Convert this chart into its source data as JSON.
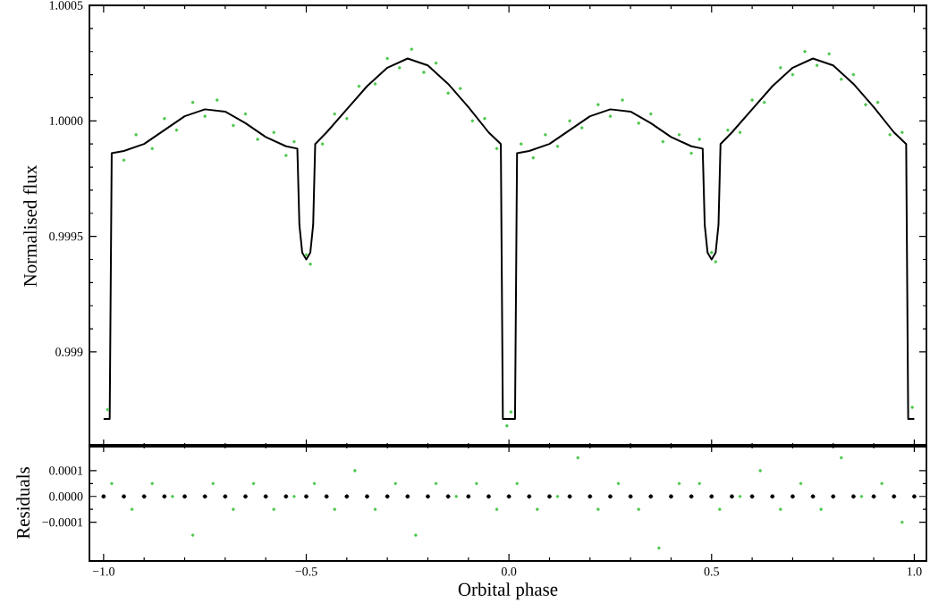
{
  "chart_data": [
    {
      "type": "scatter",
      "ylabel": "Normalised flux",
      "xlim": [
        -1.035,
        1.03
      ],
      "ylim": [
        0.99859,
        1.0005
      ],
      "tick_labels": "y",
      "xticks": [
        -1.0,
        -0.5,
        0.0,
        0.5,
        1.0
      ],
      "yticks": [
        0.999,
        0.9995,
        {
          "value": 1.0,
          "label": "1.0000"
        },
        1.0005
      ],
      "series": [
        {
          "color": "#4cc84c",
          "marker": "circle",
          "x": [
            -0.99,
            -0.95,
            -0.92,
            -0.88,
            -0.85,
            -0.82,
            -0.78,
            -0.75,
            -0.72,
            -0.68,
            -0.65,
            -0.62,
            -0.58,
            -0.55,
            -0.53,
            -0.5,
            -0.49,
            -0.46,
            -0.43,
            -0.4,
            -0.37,
            -0.33,
            -0.3,
            -0.27,
            -0.24,
            -0.21,
            -0.18,
            -0.15,
            -0.12,
            -0.09,
            -0.06,
            -0.03,
            -0.005,
            0.005,
            0.03,
            0.06,
            0.09,
            0.12,
            0.15,
            0.18,
            0.22,
            0.25,
            0.28,
            0.32,
            0.35,
            0.38,
            0.42,
            0.45,
            0.47,
            0.5,
            0.51,
            0.54,
            0.57,
            0.6,
            0.63,
            0.67,
            0.7,
            0.73,
            0.76,
            0.79,
            0.82,
            0.85,
            0.88,
            0.91,
            0.94,
            0.97,
            0.995
          ],
          "values": [
            0.99875,
            0.99983,
            0.99994,
            0.99988,
            1.00001,
            0.99996,
            1.00008,
            1.00002,
            1.00009,
            0.99998,
            1.00003,
            0.99992,
            0.99995,
            0.99985,
            0.99991,
            0.99942,
            0.99938,
            0.9999,
            1.00003,
            1.00001,
            1.00015,
            1.00016,
            1.00027,
            1.00023,
            1.00031,
            1.00021,
            1.00025,
            1.00012,
            1.00014,
            1.0,
            1.00001,
            0.99988,
            0.99868,
            0.99874,
            0.9999,
            0.99984,
            0.99994,
            0.99989,
            1.0,
            0.99997,
            1.00007,
            1.00002,
            1.00009,
            0.99999,
            1.00003,
            0.99991,
            0.99994,
            0.99986,
            0.99992,
            0.99943,
            0.99939,
            0.99996,
            0.99995,
            1.00009,
            1.00008,
            1.00023,
            1.0002,
            1.0003,
            1.00024,
            1.00029,
            1.00018,
            1.0002,
            1.00007,
            1.00008,
            0.99994,
            0.99995,
            0.99876
          ]
        },
        {
          "type": "line",
          "color": "#000000",
          "x": [
            -1.0,
            -0.985,
            -0.98,
            -0.95,
            -0.9,
            -0.85,
            -0.8,
            -0.75,
            -0.7,
            -0.65,
            -0.6,
            -0.55,
            -0.522,
            -0.517,
            -0.51,
            -0.5,
            -0.49,
            -0.483,
            -0.478,
            -0.45,
            -0.4,
            -0.35,
            -0.3,
            -0.25,
            -0.2,
            -0.15,
            -0.1,
            -0.05,
            -0.02,
            -0.015,
            0.0,
            0.015,
            0.02,
            0.05,
            0.1,
            0.15,
            0.2,
            0.25,
            0.3,
            0.35,
            0.4,
            0.45,
            0.478,
            0.483,
            0.49,
            0.5,
            0.51,
            0.517,
            0.522,
            0.55,
            0.6,
            0.65,
            0.7,
            0.75,
            0.8,
            0.85,
            0.9,
            0.95,
            0.98,
            0.985,
            1.0
          ],
          "values": [
            0.99871,
            0.99871,
            0.99986,
            0.99987,
            0.9999,
            0.99996,
            1.00002,
            1.00005,
            1.00004,
            0.99999,
            0.99993,
            0.99989,
            0.99988,
            0.99955,
            0.99943,
            0.9994,
            0.99943,
            0.99955,
            0.9999,
            0.99995,
            1.00005,
            1.00015,
            1.00023,
            1.00027,
            1.00024,
            1.00016,
            1.00006,
            0.99995,
            0.9999,
            0.99871,
            0.99871,
            0.99871,
            0.99986,
            0.99987,
            0.9999,
            0.99996,
            1.00002,
            1.00005,
            1.00004,
            0.99999,
            0.99993,
            0.99989,
            0.99988,
            0.99955,
            0.99943,
            0.9994,
            0.99943,
            0.99955,
            0.9999,
            0.99995,
            1.00005,
            1.00015,
            1.00023,
            1.00027,
            1.00024,
            1.00016,
            1.00006,
            0.99995,
            0.9999,
            0.99871,
            0.99871
          ]
        }
      ]
    },
    {
      "type": "scatter",
      "xlabel": "Orbital phase",
      "ylabel": "Residuals",
      "xlim": [
        -1.035,
        1.03
      ],
      "ylim": [
        -0.00025,
        0.0002
      ],
      "xticks": [
        {
          "value": -1.0,
          "label": "−1.0"
        },
        {
          "value": -0.5,
          "label": "−0.5"
        },
        {
          "value": 0.0,
          "label": "0.0"
        },
        0.5,
        {
          "value": 1.0,
          "label": "1.0"
        }
      ],
      "yticks": [
        {
          "value": -0.0001,
          "label": "−0.0001"
        },
        {
          "value": 0.0,
          "label": "0.0000"
        },
        0.0001
      ],
      "series": [
        {
          "color": "#4cc84c",
          "marker": "circle",
          "x": [
            -0.98,
            -0.93,
            -0.88,
            -0.83,
            -0.78,
            -0.73,
            -0.68,
            -0.63,
            -0.58,
            -0.53,
            -0.48,
            -0.43,
            -0.38,
            -0.33,
            -0.28,
            -0.23,
            -0.18,
            -0.13,
            -0.08,
            -0.03,
            0.02,
            0.07,
            0.12,
            0.17,
            0.22,
            0.27,
            0.32,
            0.37,
            0.42,
            0.47,
            0.52,
            0.57,
            0.62,
            0.67,
            0.72,
            0.77,
            0.82,
            0.87,
            0.92,
            0.97
          ],
          "values": [
            5e-05,
            -5e-05,
            5e-05,
            0.0,
            -0.00015,
            5e-05,
            -5e-05,
            5e-05,
            -5e-05,
            0.0,
            5e-05,
            -5e-05,
            0.0001,
            -5e-05,
            5e-05,
            -0.00015,
            5e-05,
            0.0,
            5e-05,
            -5e-05,
            5e-05,
            -5e-05,
            0.0,
            0.00015,
            -5e-05,
            5e-05,
            -5e-05,
            -0.0002,
            5e-05,
            5e-05,
            -5e-05,
            0.0,
            0.0001,
            -5e-05,
            5e-05,
            -5e-05,
            0.00015,
            0.0,
            5e-05,
            -0.0001
          ]
        },
        {
          "color": "#000000",
          "marker": "circle",
          "x": [
            -1.0,
            -0.95,
            -0.9,
            -0.85,
            -0.8,
            -0.75,
            -0.7,
            -0.65,
            -0.6,
            -0.55,
            -0.5,
            -0.45,
            -0.4,
            -0.35,
            -0.3,
            -0.25,
            -0.2,
            -0.15,
            -0.1,
            -0.05,
            0.0,
            0.05,
            0.1,
            0.15,
            0.2,
            0.25,
            0.3,
            0.35,
            0.4,
            0.45,
            0.5,
            0.55,
            0.6,
            0.65,
            0.7,
            0.75,
            0.8,
            0.85,
            0.9,
            0.95,
            1.0
          ],
          "values": [
            0.0,
            0.0,
            0.0,
            0.0,
            0.0,
            0.0,
            0.0,
            0.0,
            0.0,
            0.0,
            0.0,
            0.0,
            0.0,
            0.0,
            0.0,
            0.0,
            0.0,
            0.0,
            0.0,
            0.0,
            0.0,
            0.0,
            0.0,
            0.0,
            0.0,
            0.0,
            0.0,
            0.0,
            0.0,
            0.0,
            0.0,
            0.0,
            0.0,
            0.0,
            0.0,
            0.0,
            0.0,
            0.0,
            0.0,
            0.0,
            0.0
          ]
        }
      ]
    }
  ]
}
